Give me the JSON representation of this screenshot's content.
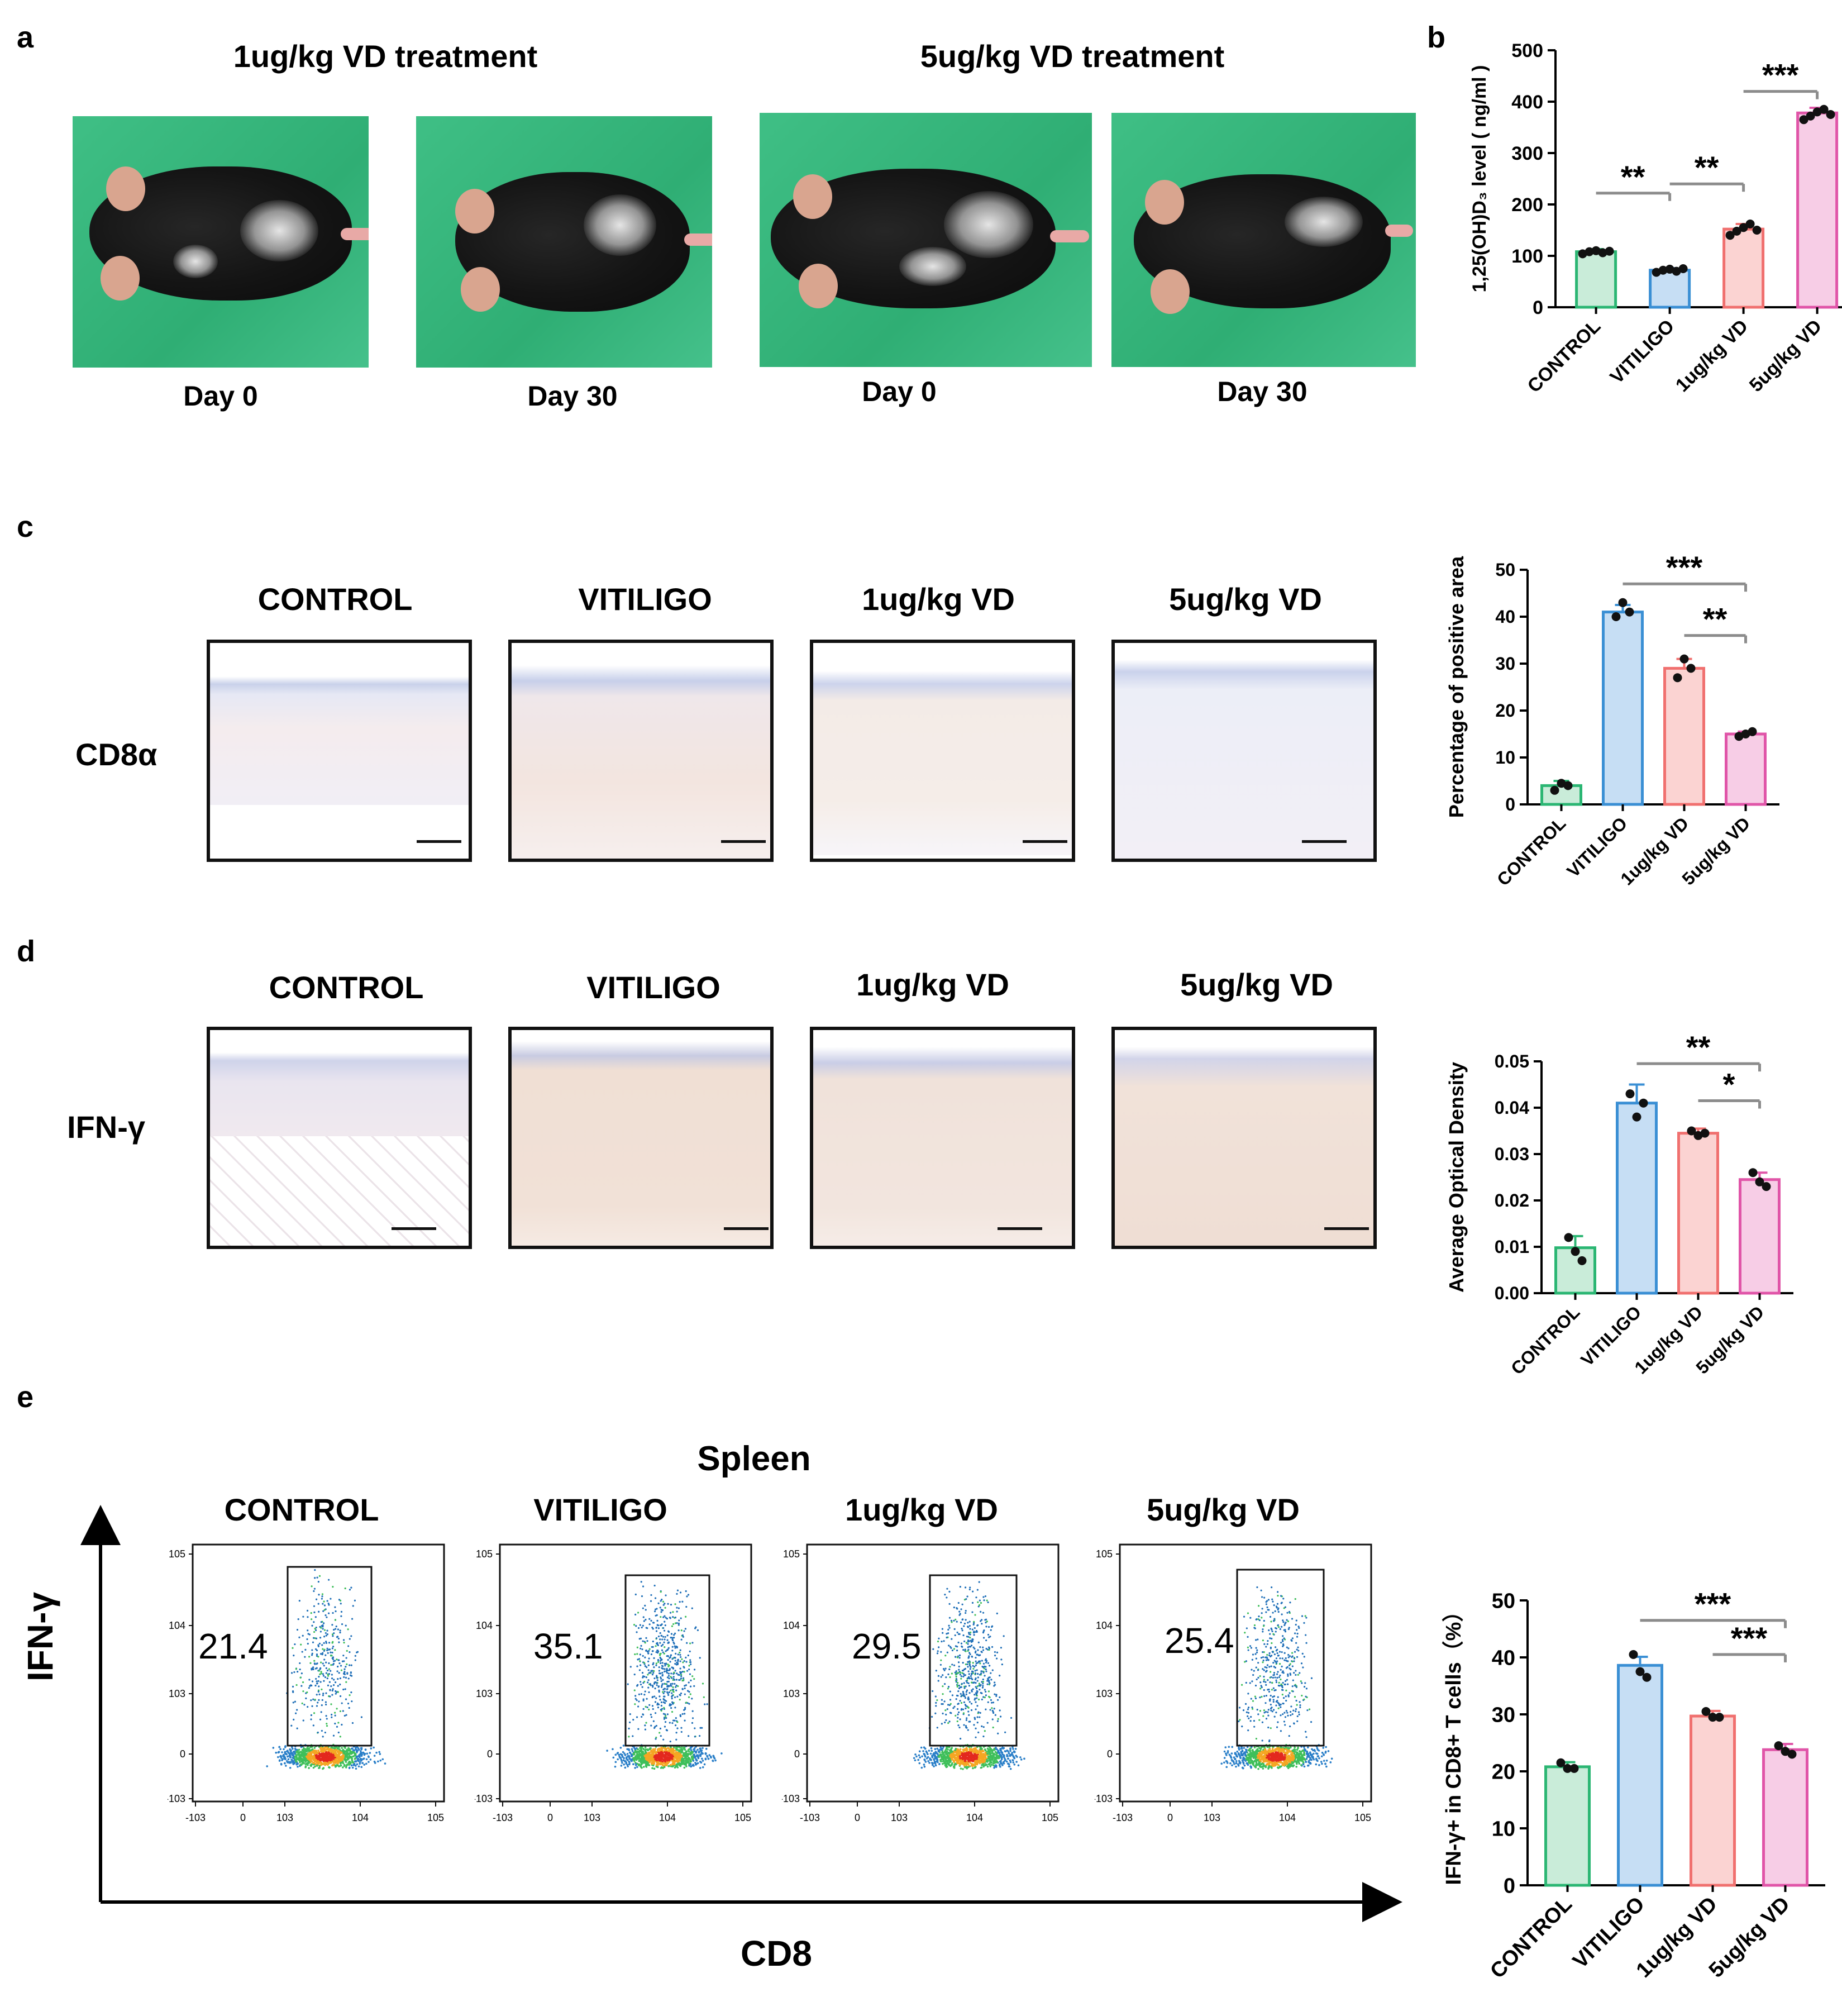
{
  "panels": {
    "a": {
      "letter": "a",
      "headers": [
        "1ug/kg VD treatment",
        "5ug/kg VD treatment"
      ],
      "captions": [
        "Day 0",
        "Day 30",
        "Day 0",
        "Day 30"
      ]
    },
    "b": {
      "letter": "b"
    },
    "c": {
      "letter": "c",
      "columns": [
        "CONTROL",
        "VITILIGO",
        "1ug/kg VD",
        "5ug/kg VD"
      ],
      "row_label": "CD8α"
    },
    "d": {
      "letter": "d",
      "columns": [
        "CONTROL",
        "VITILIGO",
        "1ug/kg VD",
        "5ug/kg VD"
      ],
      "row_label": "IFN-γ"
    },
    "e": {
      "letter": "e",
      "tissue": "Spleen",
      "columns": [
        "CONTROL",
        "VITILIGO",
        "1ug/kg VD",
        "5ug/kg VD"
      ],
      "gate_values": [
        "21.4",
        "35.1",
        "29.5",
        "25.4"
      ],
      "y_axis": "IFN-γ",
      "x_axis": "CD8",
      "flow_ticks_y": [
        "10^5",
        "10^4",
        "10^3",
        "0",
        "-10^3"
      ],
      "flow_ticks_x": [
        "-10^3",
        "0",
        "10^3",
        "10^4",
        "10^5"
      ]
    }
  },
  "colors": {
    "control": "#2bb673",
    "vitiligo": "#3a8fd4",
    "vd1": "#f0706f",
    "vd5": "#e055a8",
    "control_fill": "#c9ecd9",
    "vitiligo_fill": "#c6def4",
    "vd1_fill": "#fbd3d2",
    "vd5_fill": "#f7cde6",
    "sig_bar": "#8c8c8c"
  },
  "chart_data": [
    {
      "id": "b",
      "type": "bar",
      "categories": [
        "CONTROL",
        "VITILIGO",
        "1ug/kg VD",
        "5ug/kg VD"
      ],
      "values": [
        108,
        72,
        152,
        378
      ],
      "errors": [
        5,
        4,
        10,
        10
      ],
      "points": [
        [
          104,
          108,
          110,
          106,
          109
        ],
        [
          68,
          72,
          74,
          70,
          75
        ],
        [
          140,
          148,
          155,
          162,
          150
        ],
        [
          365,
          372,
          380,
          385,
          375
        ]
      ],
      "ylabel": "1,25(OH)D₃ level ( ng/ml )",
      "ylim": [
        0,
        500
      ],
      "yticks": [
        0,
        100,
        200,
        300,
        400,
        500
      ],
      "significance": [
        {
          "from": 0,
          "to": 1,
          "label": "**",
          "y": 222
        },
        {
          "from": 1,
          "to": 2,
          "label": "**",
          "y": 240
        },
        {
          "from": 2,
          "to": 3,
          "label": "***",
          "y": 420
        }
      ]
    },
    {
      "id": "c",
      "type": "bar",
      "categories": [
        "CONTROL",
        "VITILIGO",
        "1ug/kg VD",
        "5ug/kg VD"
      ],
      "values": [
        4,
        41,
        29,
        15
      ],
      "errors": [
        1,
        1.5,
        2,
        0.5
      ],
      "points": [
        [
          3,
          4.5,
          4
        ],
        [
          40,
          43,
          41
        ],
        [
          27,
          31,
          29
        ],
        [
          14.5,
          15,
          15.5
        ]
      ],
      "ylabel": "Percentage of positive area",
      "ylim": [
        0,
        50
      ],
      "yticks": [
        0,
        10,
        20,
        30,
        40,
        50
      ],
      "significance": [
        {
          "from": 1,
          "to": 3,
          "label": "***",
          "y": 47
        },
        {
          "from": 2,
          "to": 3,
          "label": "**",
          "y": 36
        }
      ]
    },
    {
      "id": "d",
      "type": "bar",
      "categories": [
        "CONTROL",
        "VITILIGO",
        "1ug/kg VD",
        "5ug/kg VD"
      ],
      "values": [
        0.0098,
        0.041,
        0.0345,
        0.0245
      ],
      "errors": [
        0.0025,
        0.004,
        0.001,
        0.0015
      ],
      "points": [
        [
          0.012,
          0.009,
          0.007
        ],
        [
          0.043,
          0.038,
          0.041
        ],
        [
          0.035,
          0.034,
          0.0345
        ],
        [
          0.026,
          0.024,
          0.023
        ]
      ],
      "ylabel": "Average Optical Density",
      "ylim": [
        0,
        0.05
      ],
      "yticks": [
        0.0,
        0.01,
        0.02,
        0.03,
        0.04,
        0.05
      ],
      "ytick_labels": [
        "0.00",
        "0.01",
        "0.02",
        "0.03",
        "0.04",
        "0.05"
      ],
      "significance": [
        {
          "from": 1,
          "to": 3,
          "label": "**",
          "y": 0.0495
        },
        {
          "from": 2,
          "to": 3,
          "label": "*",
          "y": 0.0415
        }
      ]
    },
    {
      "id": "e",
      "type": "bar",
      "categories": [
        "CONTROL",
        "VITILIGO",
        "1ug/kg VD",
        "5ug/kg VD"
      ],
      "values": [
        20.8,
        38.6,
        29.7,
        23.8
      ],
      "errors": [
        0.8,
        1.5,
        0.9,
        1.0
      ],
      "points": [
        [
          21.5,
          20.5,
          20.5
        ],
        [
          40.5,
          37.5,
          36.5
        ],
        [
          30.5,
          29.5,
          29.5
        ],
        [
          24.5,
          23.5,
          23
        ]
      ],
      "ylabel": "IFN-γ+ in CD8+ T cells（%）",
      "ylim": [
        0,
        50
      ],
      "yticks": [
        0,
        10,
        20,
        30,
        40,
        50
      ],
      "significance": [
        {
          "from": 1,
          "to": 3,
          "label": "***",
          "y": 46.5
        },
        {
          "from": 2,
          "to": 3,
          "label": "***",
          "y": 40.5
        }
      ]
    }
  ]
}
